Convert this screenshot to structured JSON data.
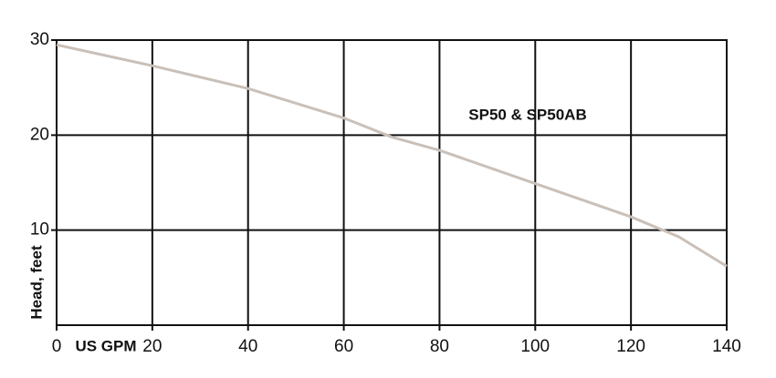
{
  "chart_data": {
    "type": "line",
    "x_label": "US GPM",
    "y_label": "Head, feet",
    "x": [
      0,
      20,
      40,
      60,
      70,
      80,
      100,
      120,
      130,
      140
    ],
    "series": [
      {
        "name": "SP50 & SP50AB",
        "color": "#c9c0b9",
        "values": [
          29.5,
          27.3,
          24.9,
          21.8,
          19.8,
          18.4,
          14.9,
          11.4,
          9.3,
          6.2
        ]
      }
    ],
    "xlim": [
      0,
      140
    ],
    "xticks": [
      0,
      20,
      40,
      60,
      80,
      100,
      120,
      140
    ],
    "ylim": [
      0,
      30
    ],
    "yticks": [
      10,
      20,
      30
    ],
    "grid": true
  }
}
